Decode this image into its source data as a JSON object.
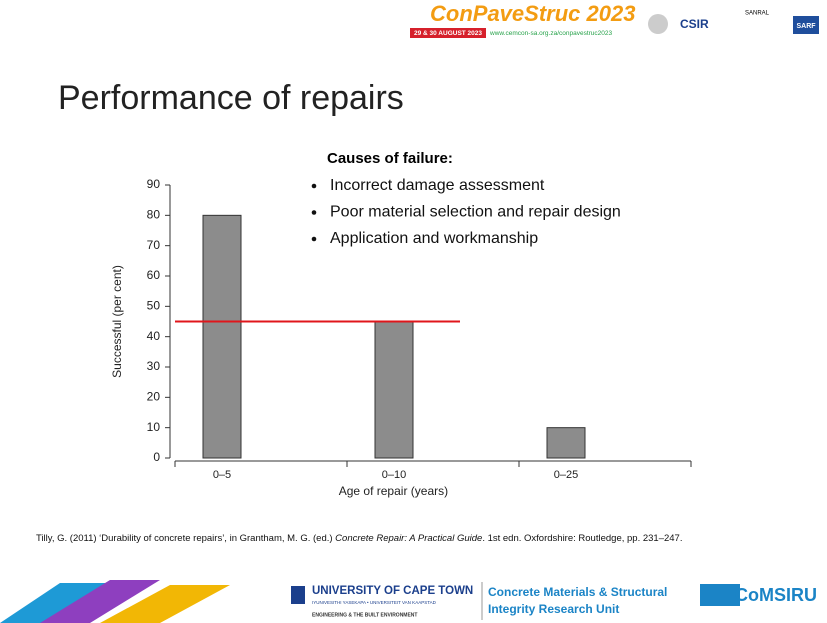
{
  "header": {
    "event": "ConPaveStruc 2023",
    "dates": "29 & 30 AUGUST 2023",
    "url": "www.cemcon-sa.org.za/conpavestruc2023",
    "logos": [
      "CSIR",
      "SANRAL",
      "SARF"
    ]
  },
  "title": "Performance of repairs",
  "causes": {
    "heading": "Causes of failure:",
    "items": [
      "Incorrect damage assessment",
      "Poor material selection and repair design",
      "Application and workmanship"
    ]
  },
  "chart_data": {
    "type": "bar",
    "categories": [
      "0–5",
      "0–10",
      "0–25"
    ],
    "values": [
      80,
      45,
      10
    ],
    "color": "#8c8c8c",
    "ylim": [
      0,
      90
    ],
    "yticks": [
      0,
      10,
      20,
      30,
      40,
      50,
      60,
      70,
      80,
      90
    ],
    "xlabel": "Age of repair (years)",
    "ylabel": "Successful (per cent)",
    "reference_line": {
      "value": 45,
      "color": "#e0161b"
    }
  },
  "citation": [
    "Tilly, G. (2011) ‘Durability of concrete repairs’, in Grantham, M. G. (ed.) ",
    "Concrete Repair: A Practical Guide",
    ". 1st edn. Oxfordshire: Routledge, pp. 231–247."
  ],
  "footer": {
    "university": "UNIVERSITY OF CAPE TOWN",
    "university_sub": "IYUNIVESITHI YASEKAPA • UNIVERSITEIT VAN KAAPSTAD",
    "faculty": "ENGINEERING & THE BUILT ENVIRONMENT",
    "unit": [
      "Concrete Materials & Structural",
      "Integrity Research Unit"
    ],
    "acronym": "CoMSIRU"
  }
}
